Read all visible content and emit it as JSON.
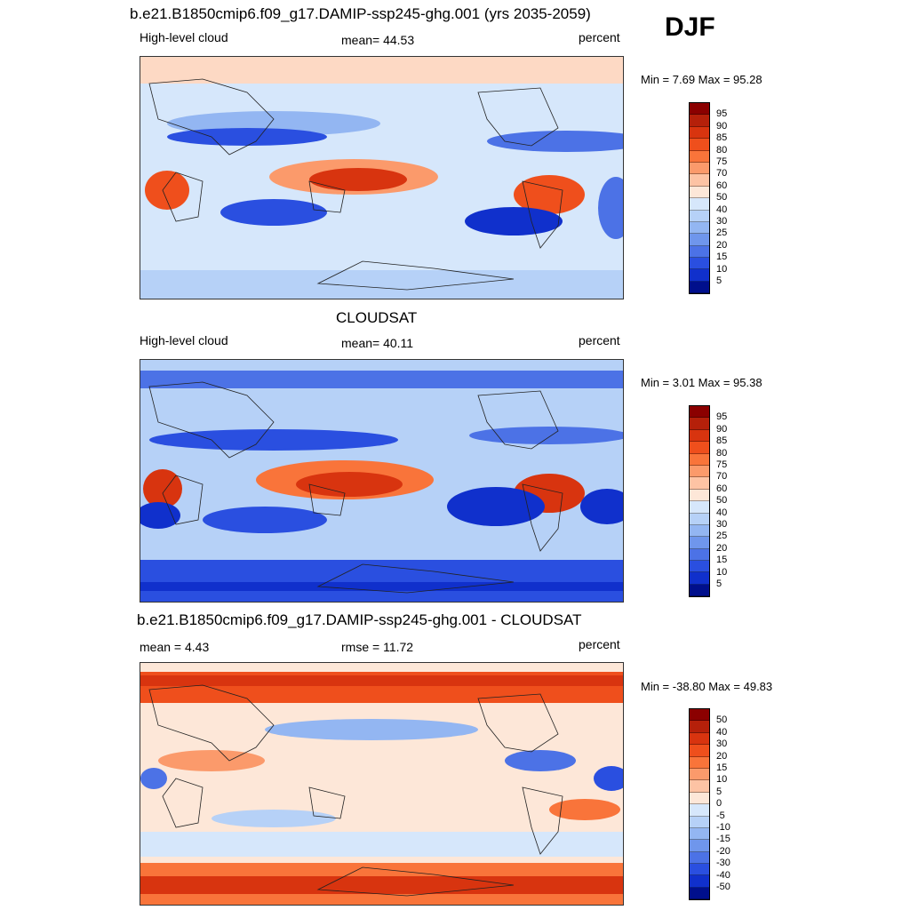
{
  "season": "DJF",
  "panels": [
    {
      "title": "b.e21.B1850cmip6.f09_g17.DAMIP-ssp245-ghg.001 (yrs 2035-2059)",
      "left_label": "High-level cloud",
      "center_label": "mean=  44.53",
      "right_label": "percent",
      "minmax": "Min =   7.69 Max =  95.28",
      "colorbar": {
        "labels": [
          "95",
          "90",
          "85",
          "80",
          "75",
          "70",
          "60",
          "50",
          "40",
          "30",
          "25",
          "20",
          "15",
          "10",
          "5"
        ],
        "colors": [
          "#8b0000",
          "#b5200a",
          "#d8340f",
          "#ef4f1c",
          "#f9743a",
          "#fb9a6b",
          "#fdc3a4",
          "#fde7d8",
          "#d6e7fb",
          "#b6d1f7",
          "#93b6f2",
          "#6f96ec",
          "#4c72e6",
          "#2a4fe0",
          "#1030cc",
          "#000f8c"
        ]
      }
    },
    {
      "title": "CLOUDSAT",
      "left_label": "High-level cloud",
      "center_label": "mean=  40.11",
      "right_label": "percent",
      "minmax": "Min =   3.01 Max =  95.38",
      "colorbar": {
        "labels": [
          "95",
          "90",
          "85",
          "80",
          "75",
          "70",
          "60",
          "50",
          "40",
          "30",
          "25",
          "20",
          "15",
          "10",
          "5"
        ],
        "colors": [
          "#8b0000",
          "#b5200a",
          "#d8340f",
          "#ef4f1c",
          "#f9743a",
          "#fb9a6b",
          "#fdc3a4",
          "#fde7d8",
          "#d6e7fb",
          "#b6d1f7",
          "#93b6f2",
          "#6f96ec",
          "#4c72e6",
          "#2a4fe0",
          "#1030cc",
          "#000f8c"
        ]
      }
    },
    {
      "title": "b.e21.B1850cmip6.f09_g17.DAMIP-ssp245-ghg.001 - CLOUDSAT",
      "left_label": "mean =   4.43",
      "center_label": "rmse =  11.72",
      "right_label": "percent",
      "minmax": "Min = -38.80 Max =  49.83",
      "colorbar": {
        "labels": [
          "50",
          "40",
          "30",
          "20",
          "15",
          "10",
          "5",
          "0",
          "-5",
          "-10",
          "-15",
          "-20",
          "-30",
          "-40",
          "-50"
        ],
        "colors": [
          "#8b0000",
          "#b5200a",
          "#d8340f",
          "#ef4f1c",
          "#f9743a",
          "#fb9a6b",
          "#fdc3a4",
          "#fde7d8",
          "#d6e7fb",
          "#b6d1f7",
          "#93b6f2",
          "#6f96ec",
          "#4c72e6",
          "#2a4fe0",
          "#1030cc",
          "#000f8c"
        ]
      }
    }
  ]
}
